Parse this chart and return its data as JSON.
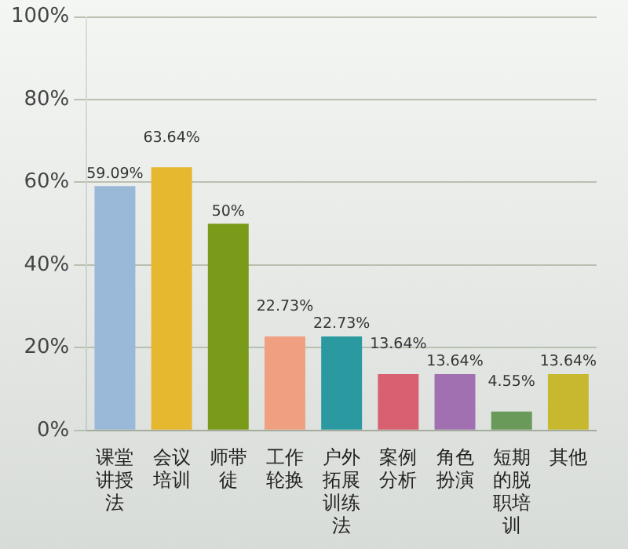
{
  "chart_data": {
    "type": "bar",
    "categories": [
      "课堂讲授法",
      "会议培训",
      "师带徒",
      "工作轮换",
      "户外拓展训练法",
      "案例分析",
      "角色扮演",
      "短期的脱职培训",
      "其他"
    ],
    "values": [
      59.09,
      63.64,
      50,
      22.73,
      22.73,
      13.64,
      13.64,
      4.55,
      13.64
    ],
    "colors": [
      "#9ab8d8",
      "#e6b830",
      "#7a9a1a",
      "#f0a080",
      "#2a9aa0",
      "#d86070",
      "#a070b0",
      "#6a9a5a",
      "#c8b830"
    ],
    "value_labels": [
      "59.09%",
      "63.64%",
      "50%",
      "22.73%",
      "22.73%",
      "13.64%",
      "13.64%",
      "4.55%",
      "13.64%"
    ],
    "ylim": [
      0,
      100
    ],
    "yticks": [
      {
        "value": 0,
        "label": "0%"
      },
      {
        "value": 20,
        "label": "20%"
      },
      {
        "value": 40,
        "label": "40%"
      },
      {
        "value": 60,
        "label": "60%"
      },
      {
        "value": 80,
        "label": "80%"
      },
      {
        "value": 100,
        "label": "100%"
      }
    ],
    "grid": "y",
    "legend": false
  }
}
